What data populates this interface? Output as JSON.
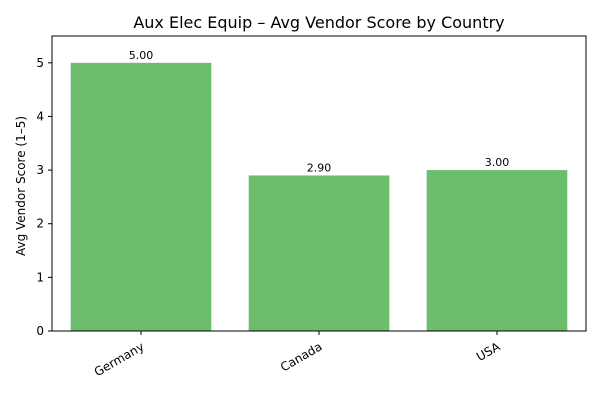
{
  "chart_data": {
    "type": "bar",
    "title": "Aux Elec Equip – Avg Vendor Score by Country",
    "xlabel": "",
    "ylabel": "Avg Vendor Score (1–5)",
    "categories": [
      "Germany",
      "Canada",
      "USA"
    ],
    "values": [
      5.0,
      2.9,
      3.0
    ],
    "value_labels": [
      "5.00",
      "2.90",
      "3.00"
    ],
    "ylim": [
      0,
      5.5
    ],
    "yticks": [
      0,
      1,
      2,
      3,
      4,
      5
    ],
    "grid": false,
    "legend": "none",
    "bar_color": "#6cbe6d"
  }
}
